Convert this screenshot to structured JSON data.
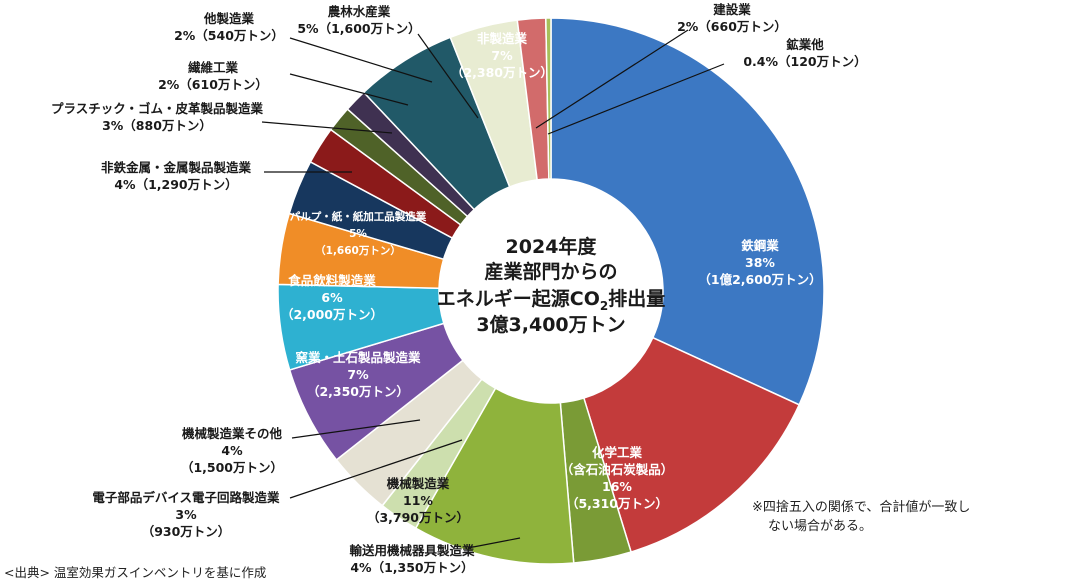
{
  "chart_data": {
    "type": "pie",
    "style": "donut",
    "center_text": [
      "2024年度",
      "産業部門からの",
      "エネルギー起源CO",
      "2",
      "排出量",
      "3億3,400万トン"
    ],
    "total": "3億3,400万トン",
    "unit": "万トン",
    "slices": [
      {
        "name": "鉄鋼業",
        "pct_label": "38%",
        "value_label": "（1億2,600万トン）",
        "value": 12600,
        "color": "#3c78c3"
      },
      {
        "name": "化学工業",
        "sub": "（含石油石炭製品）",
        "pct_label": "16%",
        "value_label": "（5,310万トン）",
        "value": 5310,
        "color": "#c33b3b"
      },
      {
        "name": "輸送用機械器具製造業",
        "pct_label": "4%",
        "value_label": "（1,350万トン）",
        "value": 1350,
        "color": "#7a9b36"
      },
      {
        "name": "機械製造業",
        "pct_label": "11%",
        "value_label": "（3,790万トン）",
        "value": 3790,
        "color": "#8fb33c"
      },
      {
        "name": "電子部品デバイス電子回路製造業",
        "pct_label": "3%",
        "value_label": "（930万トン）",
        "value": 930,
        "color": "#cddfae"
      },
      {
        "name": "機械製造業その他",
        "pct_label": "4%",
        "value_label": "（1,500万トン）",
        "value": 1500,
        "color": "#e5e1d3"
      },
      {
        "name": "窯業・土石製品製造業",
        "pct_label": "7%",
        "value_label": "（2,350万トン）",
        "value": 2350,
        "color": "#7652a3"
      },
      {
        "name": "食品飲料製造業",
        "pct_label": "6%",
        "value_label": "（2,000万トン）",
        "value": 2000,
        "color": "#2eb1d1"
      },
      {
        "name": "パルプ・紙・紙加工品製造業",
        "pct_label": "5%",
        "value_label": "（1,660万トン）",
        "value": 1660,
        "color": "#f08d27"
      },
      {
        "name": "非鉄金属・金属製品製造業",
        "pct_label": "4%",
        "value_label": "（1,290万トン）",
        "value": 1290,
        "color": "#17375e"
      },
      {
        "name": "プラスチック・ゴム・皮革製品製造業",
        "pct_label": "3%",
        "value_label": "（880万トン）",
        "value": 880,
        "color": "#8b1a1a"
      },
      {
        "name": "繊維工業",
        "pct_label": "2%",
        "value_label": "（610万トン）",
        "value": 610,
        "color": "#4f6228"
      },
      {
        "name": "他製造業",
        "pct_label": "2%",
        "value_label": "（540万トン）",
        "value": 540,
        "color": "#3f3151"
      },
      {
        "name": "非製造業",
        "pct_label": "7%",
        "value_label": "（2,380万トン）",
        "value": 2380,
        "color": "#215968"
      },
      {
        "name": "農林水産業",
        "pct_label": "5%",
        "value_label": "（1,600万トン）",
        "value": 1600,
        "color": "#e8ecd2"
      },
      {
        "name": "建設業",
        "pct_label": "2%",
        "value_label": "（660万トン）",
        "value": 660,
        "color": "#d26b6b"
      },
      {
        "name": "鉱業他",
        "pct_label": "0.4%",
        "value_label": "（120万トン）",
        "value": 120,
        "color": "#a6bf5a"
      }
    ]
  },
  "notes": {
    "rounding_line1": "※四捨五入の関係で、合計値が一致し",
    "rounding_line2": "ない場合がある。",
    "source": "<出典> 温室効果ガスインベントリを基に作成"
  }
}
